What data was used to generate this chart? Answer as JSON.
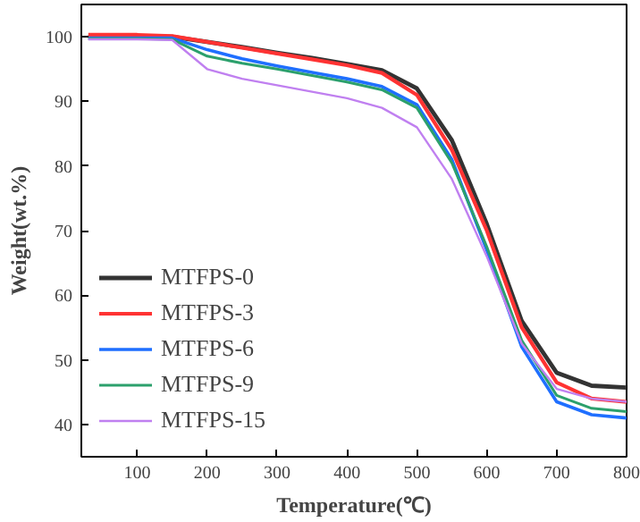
{
  "chart_data": {
    "type": "line",
    "xlabel": "Temperature(℃)",
    "ylabel": "Weight(wt.%)",
    "xlim": [
      20,
      800
    ],
    "ylim": [
      35,
      105
    ],
    "xticks": [
      100,
      200,
      300,
      400,
      500,
      600,
      700,
      800
    ],
    "yticks": [
      40,
      50,
      60,
      70,
      80,
      90,
      100
    ],
    "grid": false,
    "legend": "bottom left",
    "marker": "none",
    "line_style": "solid",
    "x": [
      30,
      100,
      150,
      200,
      250,
      300,
      350,
      400,
      450,
      500,
      550,
      600,
      650,
      700,
      750,
      800
    ],
    "series": [
      {
        "name": "MTFPS-0",
        "color": "#333333",
        "values": [
          100,
          100,
          100,
          99.2,
          98.4,
          97.5,
          96.7,
          95.8,
          94.8,
          92,
          84,
          71,
          56,
          48,
          46,
          45.7
        ]
      },
      {
        "name": "MTFPS-3",
        "color": "#ff3333",
        "values": [
          100.3,
          100.3,
          100.1,
          99.2,
          98.3,
          97.4,
          96.5,
          95.6,
          94.4,
          91,
          82.5,
          70,
          55,
          46.5,
          44,
          43.5
        ]
      },
      {
        "name": "MTFPS-6",
        "color": "#1f6fff",
        "values": [
          99.8,
          99.8,
          99.8,
          98,
          96.6,
          95.5,
          94.5,
          93.5,
          92.3,
          89.5,
          81,
          67,
          52,
          43.5,
          41.5,
          41
        ]
      },
      {
        "name": "MTFPS-9",
        "color": "#2ca06c",
        "values": [
          99.7,
          99.7,
          99.6,
          97,
          95.9,
          95,
          94,
          93,
          91.8,
          89,
          80.5,
          67.5,
          53,
          44.5,
          42.5,
          42
        ]
      },
      {
        "name": "MTFPS-15",
        "color": "#c080f0",
        "values": [
          99.6,
          99.6,
          99.5,
          95,
          93.5,
          92.5,
          91.5,
          90.5,
          89,
          86,
          78,
          66,
          52.5,
          45.5,
          44,
          43.5
        ]
      }
    ]
  }
}
